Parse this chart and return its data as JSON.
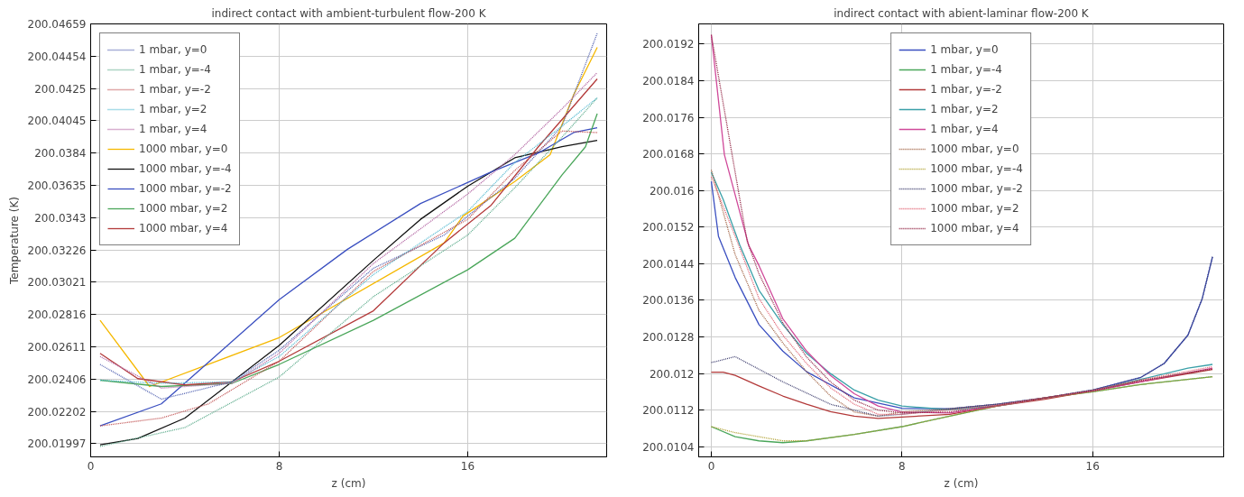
{
  "chart_data": [
    {
      "type": "line",
      "title": "indirect contact with ambient-turbulent flow-200 K",
      "xlabel": "z (cm)",
      "ylabel": "Temperature (K)",
      "xlim": [
        0,
        21.9
      ],
      "xticks": [
        0,
        8,
        16
      ],
      "ylim": [
        200.01914,
        200.04659
      ],
      "yticks": [
        200.01997,
        200.02202,
        200.02406,
        200.02611,
        200.02816,
        200.03021,
        200.03226,
        200.0343,
        200.03635,
        200.0384,
        200.04045,
        200.0425,
        200.04454,
        200.04659
      ],
      "grid": true,
      "legend": "top left",
      "series": [
        {
          "name": "1 mbar, y=0",
          "color": "#5060b0",
          "line_style": "dotted",
          "x": [
            0.4,
            3,
            6,
            8,
            12,
            15,
            18,
            20,
            21.5
          ],
          "values": [
            200.025,
            200.0228,
            200.0239,
            200.0259,
            200.0311,
            200.0332,
            200.0368,
            200.0401,
            200.046
          ]
        },
        {
          "name": "1 mbar, y=-4",
          "color": "#5aaa8a",
          "line_style": "dotted",
          "x": [
            0.4,
            4,
            8,
            12,
            16,
            18,
            20,
            21.5
          ],
          "values": [
            200.0198,
            200.021,
            200.0242,
            200.0293,
            200.0332,
            200.0362,
            200.0394,
            200.0419
          ]
        },
        {
          "name": "1 mbar, y=-2",
          "color": "#c05050",
          "line_style": "dotted",
          "x": [
            0.4,
            3,
            5,
            8,
            12,
            16,
            18,
            20,
            21.5
          ],
          "values": [
            200.0211,
            200.0216,
            200.0225,
            200.0252,
            200.0309,
            200.0342,
            200.0373,
            200.0398,
            200.0397
          ]
        },
        {
          "name": "1 mbar, y=2",
          "color": "#50b8d0",
          "line_style": "dotted",
          "x": [
            0.4,
            3,
            6,
            8,
            12,
            16,
            18,
            20,
            21.5
          ],
          "values": [
            200.024,
            200.0238,
            200.0239,
            200.0255,
            200.0307,
            200.0347,
            200.0378,
            200.0401,
            200.0419
          ]
        },
        {
          "name": "1 mbar, y=4",
          "color": "#b060a0",
          "line_style": "dotted",
          "x": [
            0.4,
            3,
            6,
            8,
            12,
            16,
            18,
            20,
            21.5
          ],
          "values": [
            200.0255,
            200.0235,
            200.0238,
            200.0257,
            200.0314,
            200.0358,
            200.0383,
            200.0412,
            200.0435
          ]
        },
        {
          "name": "1000 mbar, y=0",
          "color": "#f5b800",
          "line_style": "solid",
          "x": [
            0.4,
            2.5,
            8,
            15,
            15.8,
            18,
            19.5,
            20.5,
            21.5
          ],
          "values": [
            200.0278,
            200.0236,
            200.0267,
            200.0327,
            200.0344,
            200.0366,
            200.0383,
            200.0421,
            200.0451
          ]
        },
        {
          "name": "1000 mbar, y=-4",
          "color": "#111111",
          "line_style": "solid",
          "x": [
            0.4,
            2,
            4,
            8,
            12,
            14,
            16,
            18,
            20,
            21.5
          ],
          "values": [
            200.0199,
            200.0203,
            200.0216,
            200.0262,
            200.0316,
            200.0342,
            200.0363,
            200.0381,
            200.0388,
            200.0392
          ]
        },
        {
          "name": "1000 mbar, y=-2",
          "color": "#3a4fc0",
          "line_style": "solid",
          "x": [
            0.4,
            3,
            8,
            10.9,
            14,
            17,
            19,
            20.5,
            21.5
          ],
          "values": [
            200.0211,
            200.0225,
            200.0291,
            200.0323,
            200.0352,
            200.0372,
            200.0384,
            200.0397,
            200.04
          ]
        },
        {
          "name": "1000 mbar, y=2",
          "color": "#4aa65a",
          "line_style": "solid",
          "x": [
            0.4,
            3,
            6,
            8,
            12,
            16,
            18,
            20,
            21,
            21.5
          ],
          "values": [
            200.024,
            200.0236,
            200.0238,
            200.025,
            200.0278,
            200.031,
            200.033,
            200.037,
            200.0388,
            200.0409
          ]
        },
        {
          "name": "1000 mbar, y=4",
          "color": "#b33a3a",
          "line_style": "solid",
          "x": [
            0.4,
            2,
            4,
            6,
            8,
            12,
            15,
            17,
            19,
            21.5
          ],
          "values": [
            200.0257,
            200.0241,
            200.0237,
            200.0239,
            200.0252,
            200.0284,
            200.0327,
            200.0351,
            200.0388,
            200.0431
          ]
        }
      ]
    },
    {
      "type": "line",
      "title": "indirect contact with abient-laminar flow-200 K",
      "xlabel": "z (cm)",
      "xlim": [
        -0.53,
        21.5
      ],
      "xticks": [
        0,
        8,
        16
      ],
      "ylim": [
        200.01018,
        200.01964
      ],
      "yticks": [
        200.0104,
        200.0112,
        200.012,
        200.0128,
        200.0136,
        200.0144,
        200.0152,
        200.016,
        200.0168,
        200.0176,
        200.0184,
        200.0192
      ],
      "grid": true,
      "legend": "top center",
      "series": [
        {
          "name": "1 mbar, y=0",
          "color": "#3a4fc0",
          "line_style": "solid",
          "x": [
            0,
            0.3,
            1,
            2,
            3,
            4,
            6,
            8,
            10,
            12,
            14,
            16,
            18,
            19,
            20,
            20.6,
            21.03
          ],
          "values": [
            200.0162,
            200.015,
            200.0141,
            200.01307,
            200.01249,
            200.01204,
            200.01147,
            200.01124,
            200.01123,
            200.01133,
            200.01147,
            200.01164,
            200.01191,
            200.01222,
            200.01284,
            200.01364,
            200.01455
          ]
        },
        {
          "name": "1 mbar, y=-4",
          "color": "#4aa65a",
          "line_style": "solid",
          "x": [
            0,
            1,
            2,
            3,
            4,
            6,
            8,
            10,
            12,
            14,
            16,
            18,
            21.03
          ],
          "values": [
            200.01084,
            200.01062,
            200.01053,
            200.01049,
            200.01053,
            200.01067,
            200.01084,
            200.01107,
            200.01129,
            200.01147,
            200.0116,
            200.01176,
            200.01193
          ]
        },
        {
          "name": "1 mbar, y=-2",
          "color": "#b33a3a",
          "line_style": "solid",
          "x": [
            0,
            0.5,
            1,
            2,
            3,
            4,
            5,
            6,
            7,
            8,
            10,
            12,
            14,
            16,
            18,
            21.03
          ],
          "values": [
            200.01203,
            200.01203,
            200.01196,
            200.01173,
            200.01151,
            200.01133,
            200.01117,
            200.01107,
            200.01102,
            200.01105,
            200.01111,
            200.01129,
            200.01144,
            200.01162,
            200.01182,
            200.01209
          ]
        },
        {
          "name": "1 mbar, y=2",
          "color": "#3aa0a8",
          "line_style": "solid",
          "x": [
            0,
            0.5,
            1.2,
            2,
            3,
            4,
            5,
            6,
            7,
            8,
            10,
            12,
            14,
            16,
            18,
            20,
            21.03
          ],
          "values": [
            200.0164,
            200.0158,
            200.0148,
            200.01382,
            200.01307,
            200.01244,
            200.012,
            200.01164,
            200.01142,
            200.01129,
            200.01121,
            200.01129,
            200.01147,
            200.01162,
            200.01187,
            200.01212,
            200.0122
          ]
        },
        {
          "name": "1 mbar, y=4",
          "color": "#d04a9a",
          "line_style": "solid",
          "x": [
            0,
            0.55,
            1.57,
            2,
            3,
            4,
            5,
            6,
            7,
            8,
            10,
            12,
            14,
            16,
            18,
            21.03
          ],
          "values": [
            200.0194,
            200.01678,
            200.0148,
            200.01436,
            200.0132,
            200.01249,
            200.01196,
            200.01156,
            200.01129,
            200.01116,
            200.01114,
            200.01129,
            200.01147,
            200.01162,
            200.01182,
            200.01212
          ]
        },
        {
          "name": "1000 mbar, y=0",
          "color": "#a06040",
          "line_style": "dotted",
          "x": [
            0,
            1,
            2,
            3,
            4,
            5,
            6,
            7,
            8,
            10,
            12,
            14,
            16,
            18,
            21.03
          ],
          "values": [
            200.01645,
            200.0146,
            200.01338,
            200.01267,
            200.01204,
            200.01151,
            200.01116,
            200.01107,
            200.01116,
            200.01123,
            200.01133,
            200.01147,
            200.01164,
            200.01185,
            200.0121
          ]
        },
        {
          "name": "1000 mbar, y=-4",
          "color": "#b0a030",
          "line_style": "dotted",
          "x": [
            0,
            1,
            2,
            3,
            4,
            6,
            8,
            10,
            12,
            14,
            16,
            18,
            21.03
          ],
          "values": [
            200.01084,
            200.01071,
            200.01062,
            200.01053,
            200.01053,
            200.01067,
            200.01084,
            200.01107,
            200.01129,
            200.01147,
            200.0116,
            200.01176,
            200.01193
          ]
        },
        {
          "name": "1000 mbar, y=-2",
          "color": "#404070",
          "line_style": "dotted",
          "x": [
            0,
            1,
            3,
            5,
            7,
            8,
            10,
            12,
            14,
            16,
            18,
            19,
            20,
            20.6,
            21.03
          ],
          "values": [
            200.01224,
            200.01237,
            200.01182,
            200.01133,
            200.01107,
            200.01111,
            200.01123,
            200.01133,
            200.01147,
            200.01164,
            200.01191,
            200.01222,
            200.01284,
            200.01364,
            200.01455
          ]
        },
        {
          "name": "1000 mbar, y=2",
          "color": "#e06070",
          "line_style": "dotted",
          "x": [
            0,
            1,
            2,
            3,
            4,
            5,
            6,
            7,
            8,
            10,
            12,
            14,
            16,
            18,
            21.03
          ],
          "values": [
            200.0163,
            200.015,
            200.01364,
            200.01284,
            200.01222,
            200.01169,
            200.01133,
            200.01111,
            200.01111,
            200.0112,
            200.01131,
            200.01147,
            200.01163,
            200.01186,
            200.01215
          ]
        },
        {
          "name": "1000 mbar, y=4",
          "color": "#902040",
          "line_style": "dotted",
          "x": [
            0,
            1.5,
            2,
            3,
            4,
            5,
            6,
            7,
            8,
            10,
            12,
            14,
            16,
            18,
            21.03
          ],
          "values": [
            200.0194,
            200.0149,
            200.01418,
            200.01311,
            200.01236,
            200.01182,
            200.01142,
            200.0112,
            200.01114,
            200.01116,
            200.0113,
            200.01147,
            200.01162,
            200.01184,
            200.0121
          ]
        }
      ]
    }
  ]
}
